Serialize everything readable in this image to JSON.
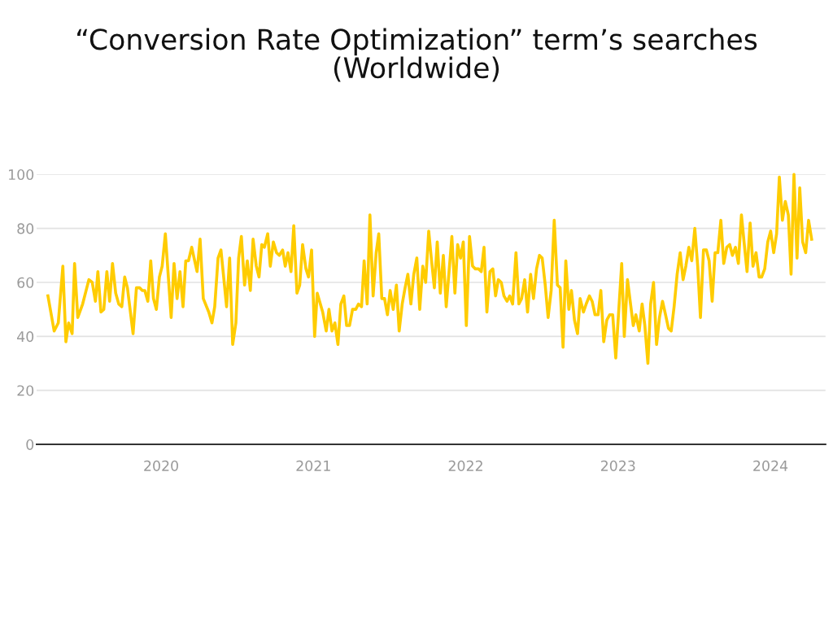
{
  "chart_data": {
    "type": "line",
    "title": "“Conversion Rate Optimization” term’s searches\n(Worldwide)",
    "xlim": [
      2019.183,
      2024.362
    ],
    "xticks": [
      2020,
      2021,
      2022,
      2023,
      2024
    ],
    "ylim": [
      0,
      100
    ],
    "yticks": [
      0,
      20,
      40,
      60,
      80,
      100
    ],
    "grid": "y",
    "marker": "none",
    "line_style": "solid",
    "series": [
      {
        "color": "#ffcc00",
        "x": [
          2019.257,
          2019.298,
          2019.325,
          2019.355,
          2019.375,
          2019.393,
          2019.416,
          2019.432,
          2019.453,
          2019.485,
          2019.526,
          2019.548,
          2019.569,
          2019.585,
          2019.605,
          2019.624,
          2019.644,
          2019.662,
          2019.681,
          2019.702,
          2019.722,
          2019.742,
          2019.761,
          2019.779,
          2019.816,
          2019.838,
          2019.859,
          2019.877,
          2019.893,
          2019.913,
          2019.932,
          2019.95,
          2019.969,
          2019.989,
          2020.007,
          2020.028,
          2020.066,
          2020.085,
          2020.105,
          2020.124,
          2020.144,
          2020.162,
          2020.18,
          2020.201,
          2020.236,
          2020.256,
          2020.277,
          2020.313,
          2020.334,
          2020.352,
          2020.374,
          2020.393,
          2020.409,
          2020.43,
          2020.45,
          2020.47,
          2020.491,
          2020.509,
          2020.527,
          2020.548,
          2020.566,
          2020.586,
          2020.604,
          2020.625,
          2020.643,
          2020.661,
          2020.678,
          2020.7,
          2020.717,
          2020.737,
          2020.758,
          2020.776,
          2020.798,
          2020.815,
          2020.833,
          2020.853,
          2020.871,
          2020.892,
          2020.91,
          2020.929,
          2020.951,
          2020.968,
          2020.988,
          2021.008,
          2021.025,
          2021.061,
          2021.084,
          2021.102,
          2021.122,
          2021.141,
          2021.161,
          2021.18,
          2021.2,
          2021.218,
          2021.237,
          2021.257,
          2021.278,
          2021.296,
          2021.316,
          2021.333,
          2021.353,
          2021.371,
          2021.392,
          2021.412,
          2021.429,
          2021.449,
          2021.467,
          2021.486,
          2021.504,
          2021.524,
          2021.545,
          2021.563,
          2021.583,
          2021.602,
          2021.62,
          2021.64,
          2021.659,
          2021.679,
          2021.698,
          2021.718,
          2021.737,
          2021.757,
          2021.774,
          2021.794,
          2021.813,
          2021.833,
          2021.853,
          2021.872,
          2021.909,
          2021.929,
          2021.947,
          2021.966,
          2021.984,
          2022.004,
          2022.025,
          2022.045,
          2022.063,
          2022.084,
          2022.102,
          2022.12,
          2022.139,
          2022.159,
          2022.178,
          2022.196,
          2022.214,
          2022.233,
          2022.251,
          2022.271,
          2022.289,
          2022.308,
          2022.33,
          2022.349,
          2022.367,
          2022.387,
          2022.406,
          2022.426,
          2022.445,
          2022.465,
          2022.484,
          2022.502,
          2022.522,
          2022.541,
          2022.561,
          2022.581,
          2022.602,
          2022.62,
          2022.639,
          2022.657,
          2022.677,
          2022.694,
          2022.714,
          2022.734,
          2022.751,
          2022.773,
          2022.791,
          2022.812,
          2022.83,
          2022.849,
          2022.869,
          2022.887,
          2022.906,
          2022.926,
          2022.945,
          2022.965,
          2022.985,
          2023.024,
          2023.041,
          2023.062,
          2023.082,
          2023.1,
          2023.117,
          2023.139,
          2023.158,
          2023.176,
          2023.196,
          2023.214,
          2023.233,
          2023.253,
          2023.272,
          2023.292,
          2023.312,
          2023.331,
          2023.349,
          2023.368,
          2023.388,
          2023.408,
          2023.427,
          2023.445,
          2023.465,
          2023.484,
          2023.504,
          2023.523,
          2023.541,
          2023.561,
          2023.58,
          2023.598,
          2023.618,
          2023.637,
          2023.655,
          2023.675,
          2023.694,
          2023.714,
          2023.733,
          2023.751,
          2023.771,
          2023.79,
          2023.81,
          2023.829,
          2023.847,
          2023.867,
          2023.886,
          2023.906,
          2023.926,
          2023.943,
          2023.963,
          2023.983,
          2024.002,
          2024.022,
          2024.041,
          2024.059,
          2024.079,
          2024.098,
          2024.118,
          2024.136,
          2024.155,
          2024.175,
          2024.193,
          2024.212,
          2024.232,
          2024.251,
          2024.271
        ],
        "values": [
          55,
          42,
          45,
          66,
          38,
          45,
          41,
          67,
          47,
          52,
          61,
          60,
          53,
          64,
          49,
          50,
          64,
          53,
          67,
          56,
          52,
          51,
          62,
          58,
          41,
          58,
          58,
          57,
          57,
          53,
          68,
          54,
          50,
          62,
          66,
          78,
          47,
          67,
          54,
          64,
          51,
          68,
          68,
          73,
          64,
          76,
          54,
          49,
          45,
          51,
          69,
          72,
          63,
          51,
          69,
          37,
          45,
          69,
          77,
          59,
          68,
          57,
          76,
          66,
          62,
          74,
          73,
          78,
          66,
          75,
          71,
          70,
          72,
          66,
          71,
          64,
          81,
          56,
          59,
          74,
          65,
          62,
          72,
          40,
          56,
          49,
          42,
          50,
          42,
          45,
          37,
          52,
          55,
          44,
          44,
          50,
          50,
          52,
          51,
          68,
          52,
          85,
          55,
          71,
          78,
          54,
          54,
          48,
          57,
          50,
          59,
          42,
          52,
          58,
          63,
          52,
          63,
          69,
          50,
          66,
          60,
          79,
          69,
          58,
          75,
          56,
          70,
          51,
          77,
          56,
          74,
          69,
          75,
          44,
          77,
          66,
          65,
          65,
          64,
          73,
          49,
          64,
          65,
          55,
          61,
          60,
          55,
          53,
          55,
          52,
          71,
          52,
          54,
          61,
          49,
          63,
          54,
          65,
          70,
          69,
          59,
          47,
          57,
          83,
          59,
          58,
          36,
          68,
          50,
          57,
          46,
          41,
          54,
          49,
          52,
          55,
          53,
          48,
          48,
          57,
          38,
          46,
          48,
          48,
          32,
          67,
          40,
          61,
          52,
          44,
          48,
          42,
          52,
          44,
          30,
          52,
          60,
          37,
          47,
          53,
          48,
          43,
          42,
          51,
          63,
          71,
          61,
          66,
          73,
          68,
          80,
          66,
          47,
          72,
          72,
          68,
          53,
          71,
          71,
          83,
          67,
          73,
          74,
          70,
          73,
          67,
          85,
          74,
          64,
          82,
          66,
          71,
          62,
          62,
          65,
          75,
          79,
          71,
          78,
          99,
          83,
          90,
          85,
          63,
          100,
          69,
          95,
          75,
          71,
          83,
          76
        ]
      }
    ]
  }
}
